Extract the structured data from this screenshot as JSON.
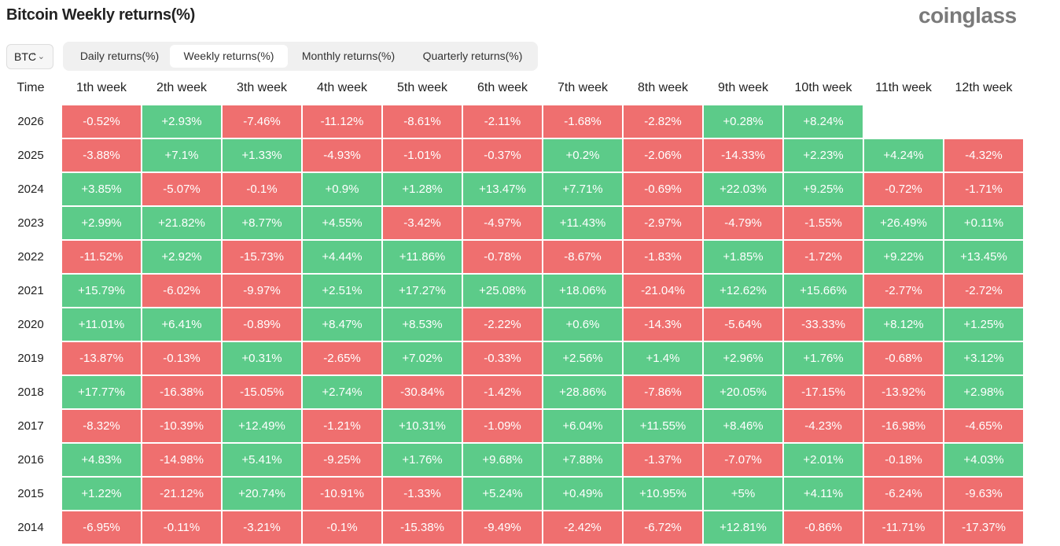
{
  "header": {
    "title": "Bitcoin Weekly returns(%)",
    "brand": "coinglass"
  },
  "controls": {
    "symbol": "BTC",
    "tabs": [
      "Daily returns(%)",
      "Weekly returns(%)",
      "Monthly returns(%)",
      "Quarterly returns(%)"
    ],
    "selected_tab": 1
  },
  "table": {
    "columns": [
      "Time",
      "1th week",
      "2th week",
      "3th week",
      "4th week",
      "5th week",
      "6th week",
      "7th week",
      "8th week",
      "9th week",
      "10th week",
      "11th week",
      "12th week"
    ],
    "rows": [
      [
        "2026",
        "-0.52%",
        "+2.93%",
        "-7.46%",
        "-11.12%",
        "-8.61%",
        "-2.11%",
        "-1.68%",
        "-2.82%",
        "+0.28%",
        "+8.24%"
      ],
      [
        "2025",
        "-3.88%",
        "+7.1%",
        "+1.33%",
        "-4.93%",
        "-1.01%",
        "-0.37%",
        "+0.2%",
        "-2.06%",
        "-14.33%",
        "+2.23%",
        "+4.24%",
        "-4.32%"
      ],
      [
        "2024",
        "+3.85%",
        "-5.07%",
        "-0.1%",
        "+0.9%",
        "+1.28%",
        "+13.47%",
        "+7.71%",
        "-0.69%",
        "+22.03%",
        "+9.25%",
        "-0.72%",
        "-1.71%"
      ],
      [
        "2023",
        "+2.99%",
        "+21.82%",
        "+8.77%",
        "+4.55%",
        "-3.42%",
        "-4.97%",
        "+11.43%",
        "-2.97%",
        "-4.79%",
        "-1.55%",
        "+26.49%",
        "+0.11%"
      ],
      [
        "2022",
        "-11.52%",
        "+2.92%",
        "-15.73%",
        "+4.44%",
        "+11.86%",
        "-0.78%",
        "-8.67%",
        "-1.83%",
        "+1.85%",
        "-1.72%",
        "+9.22%",
        "+13.45%"
      ],
      [
        "2021",
        "+15.79%",
        "-6.02%",
        "-9.97%",
        "+2.51%",
        "+17.27%",
        "+25.08%",
        "+18.06%",
        "-21.04%",
        "+12.62%",
        "+15.66%",
        "-2.77%",
        "-2.72%"
      ],
      [
        "2020",
        "+11.01%",
        "+6.41%",
        "-0.89%",
        "+8.47%",
        "+8.53%",
        "-2.22%",
        "+0.6%",
        "-14.3%",
        "-5.64%",
        "-33.33%",
        "+8.12%",
        "+1.25%"
      ],
      [
        "2019",
        "-13.87%",
        "-0.13%",
        "+0.31%",
        "-2.65%",
        "+7.02%",
        "-0.33%",
        "+2.56%",
        "+1.4%",
        "+2.96%",
        "+1.76%",
        "-0.68%",
        "+3.12%"
      ],
      [
        "2018",
        "+17.77%",
        "-16.38%",
        "-15.05%",
        "+2.74%",
        "-30.84%",
        "-1.42%",
        "+28.86%",
        "-7.86%",
        "+20.05%",
        "-17.15%",
        "-13.92%",
        "+2.98%"
      ],
      [
        "2017",
        "-8.32%",
        "-10.39%",
        "+12.49%",
        "-1.21%",
        "+10.31%",
        "-1.09%",
        "+6.04%",
        "+11.55%",
        "+8.46%",
        "-4.23%",
        "-16.98%",
        "-4.65%"
      ],
      [
        "2016",
        "+4.83%",
        "-14.98%",
        "+5.41%",
        "-9.25%",
        "+1.76%",
        "+9.68%",
        "+7.88%",
        "-1.37%",
        "-7.07%",
        "+2.01%",
        "-0.18%",
        "+4.03%"
      ],
      [
        "2015",
        "+1.22%",
        "-21.12%",
        "+20.74%",
        "-10.91%",
        "-1.33%",
        "+5.24%",
        "+0.49%",
        "+10.95%",
        "+5%",
        "+4.11%",
        "-6.24%",
        "-9.63%"
      ],
      [
        "2014",
        "-6.95%",
        "-0.11%",
        "-3.21%",
        "-0.1%",
        "-15.38%",
        "-9.49%",
        "-2.42%",
        "-6.72%",
        "+12.81%",
        "-0.86%",
        "-11.71%",
        "-17.37%"
      ]
    ]
  }
}
